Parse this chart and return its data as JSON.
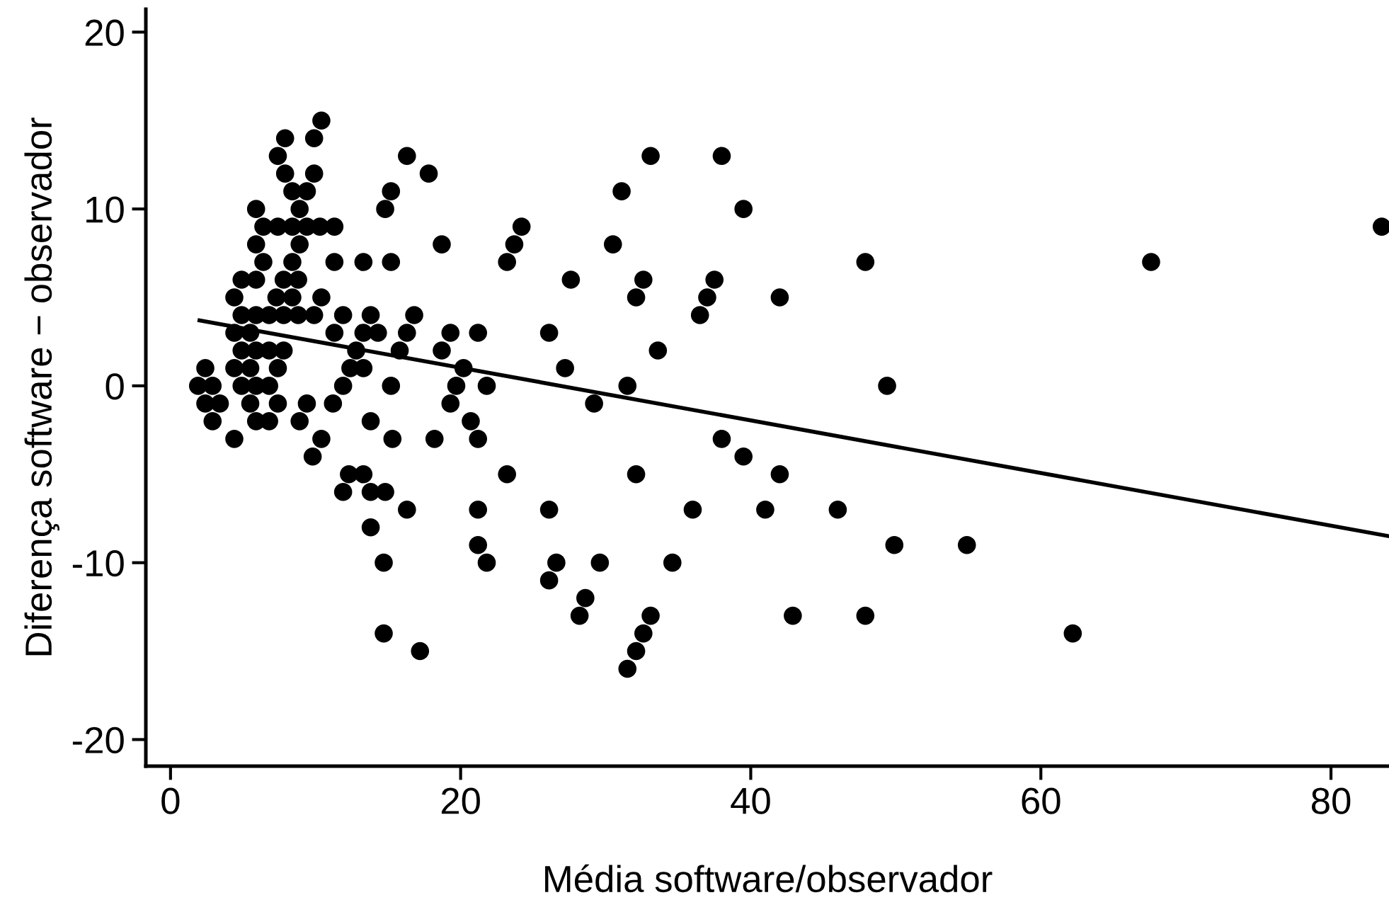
{
  "chart_data": {
    "type": "scatter",
    "xlabel": "Média software/observador",
    "ylabel": "Diferença software − observador",
    "xlim": [
      -1.7,
      84
    ],
    "ylim": [
      -21.5,
      21.3
    ],
    "xticks": [
      0,
      20,
      40,
      60,
      80
    ],
    "yticks": [
      -20,
      -10,
      0,
      10,
      20
    ],
    "grid": false,
    "legend": false,
    "marker": "circle",
    "series": [
      {
        "color": "#000000",
        "x": [
          10.4,
          7.9,
          9.9,
          7.4,
          7.9,
          9.9,
          8.4,
          9.4,
          15.2,
          5.9,
          8.9,
          14.8,
          6.4,
          7.4,
          8.4,
          9.4,
          10.3,
          11.3,
          5.9,
          8.9,
          6.4,
          8.4,
          11.3,
          13.3,
          15.2,
          4.9,
          5.9,
          7.8,
          8.8,
          4.4,
          7.3,
          8.4,
          10.4,
          4.9,
          5.9,
          6.8,
          7.8,
          8.8,
          9.9,
          11.9,
          13.8,
          4.4,
          5.5,
          11.3,
          13.3,
          14.3,
          4.9,
          5.9,
          6.8,
          7.8,
          12.8,
          2.4,
          4.4,
          5.5,
          7.4,
          12.4,
          13.3,
          1.9,
          2.9,
          4.9,
          5.9,
          6.8,
          11.9,
          15.2,
          2.4,
          3.4,
          5.5,
          7.4,
          9.4,
          11.2,
          2.9,
          5.9,
          6.8,
          8.9,
          13.8,
          4.4,
          10.4,
          15.3,
          18.2,
          9.8,
          12.3,
          13.3,
          11.9,
          13.8,
          14.8,
          16.3,
          13.8,
          14.7,
          14.7,
          17.2,
          16.3,
          33.1,
          38.0,
          17.8,
          31.1,
          39.5,
          24.2,
          18.7,
          23.7,
          30.5,
          23.2,
          27.6,
          32.6,
          37.5,
          32.1,
          37.0,
          16.8,
          36.5,
          16.3,
          19.3,
          21.2,
          26.1,
          15.8,
          18.7,
          33.6,
          20.2,
          27.2,
          19.7,
          21.8,
          31.5,
          19.3,
          29.2,
          20.7,
          21.2,
          38.0,
          39.5,
          23.2,
          32.1,
          42.0,
          21.2,
          26.1,
          36.0,
          41.0,
          21.2,
          21.8,
          26.6,
          29.6,
          34.6,
          26.1,
          28.6,
          28.2,
          33.1,
          32.6,
          32.1,
          31.5,
          83.5,
          47.9,
          67.6,
          42.0,
          49.4,
          46.0,
          49.9,
          54.9,
          42.9,
          47.9,
          62.2
        ],
        "values": [
          15,
          14,
          14,
          13,
          12,
          12,
          11,
          11,
          11,
          10,
          10,
          10,
          9,
          9,
          9,
          9,
          9,
          9,
          8,
          8,
          7,
          7,
          7,
          7,
          7,
          6,
          6,
          6,
          6,
          5,
          5,
          5,
          5,
          4,
          4,
          4,
          4,
          4,
          4,
          4,
          4,
          3,
          3,
          3,
          3,
          3,
          2,
          2,
          2,
          2,
          2,
          1,
          1,
          1,
          1,
          1,
          1,
          0,
          0,
          0,
          0,
          0,
          0,
          0,
          -1,
          -1,
          -1,
          -1,
          -1,
          -1,
          -2,
          -2,
          -2,
          -2,
          -2,
          -3,
          -3,
          -3,
          -3,
          -4,
          -5,
          -5,
          -6,
          -6,
          -6,
          -7,
          -8,
          -10,
          -14,
          -15,
          13,
          13,
          13,
          12,
          11,
          10,
          9,
          8,
          8,
          8,
          7,
          6,
          6,
          6,
          5,
          5,
          4,
          4,
          3,
          3,
          3,
          3,
          2,
          2,
          2,
          1,
          1,
          0,
          0,
          0,
          -1,
          -1,
          -2,
          -3,
          -3,
          -4,
          -5,
          -5,
          -5,
          -7,
          -7,
          -7,
          -7,
          -9,
          -10,
          -10,
          -10,
          -10,
          -11,
          -12,
          -13,
          -13,
          -14,
          -15,
          -16,
          9,
          7,
          7,
          5,
          0,
          -7,
          -9,
          -9,
          -13,
          -13,
          -14
        ]
      },
      {
        "type": "line",
        "color": "#000000",
        "marker": "none",
        "x": [
          2.0,
          84.0
        ],
        "values": [
          3.7,
          -8.5
        ]
      }
    ]
  }
}
